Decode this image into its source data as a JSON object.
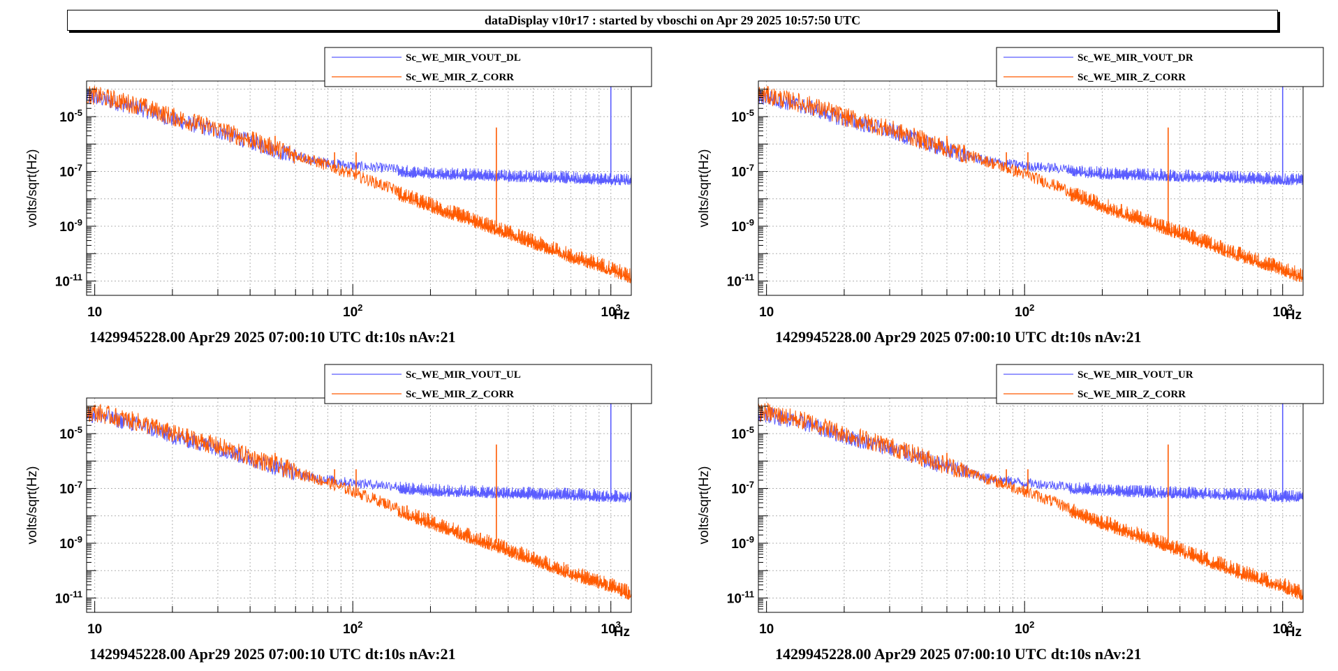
{
  "banner": "dataDisplay v10r17 : started by vboschi on Apr 29 2025 10:57:50 UTC",
  "colors": {
    "vout": "#5a5cff",
    "zcorr": "#ff5a00"
  },
  "chart_data": [
    {
      "type": "line",
      "ylabel": "volts/sqrt(Hz)",
      "xlabel_unit": "Hz",
      "footer": "1429945228.00 Apr29 2025 07:00:10 UTC dt:10s nAv:21",
      "xscale": "log",
      "yscale": "log",
      "xlim": [
        9.3,
        1200
      ],
      "ylim": [
        3e-12,
        0.0002
      ],
      "xticks": [
        "10",
        "10^2",
        "10^3"
      ],
      "yticks": [
        "10^-5",
        "10^-7",
        "10^-9",
        "10^-11"
      ],
      "grid": true,
      "legend_position": "top-right",
      "series": [
        {
          "name": "Sc_WE_MIR_VOUT_DL",
          "color": "#5a5cff",
          "x": [
            10,
            15,
            20,
            30,
            50,
            70,
            100,
            200,
            400,
            700,
            1000,
            1200
          ],
          "y": [
            5e-05,
            2e-05,
            8e-06,
            3e-06,
            6e-07,
            2.5e-07,
            1.6e-07,
            1e-07,
            8e-08,
            7e-08,
            6e-08,
            6e-08
          ],
          "peaks": [
            {
              "x": 1000,
              "y": 0.00015
            }
          ]
        },
        {
          "name": "Sc_WE_MIR_Z_CORR",
          "color": "#ff5a00",
          "x": [
            10,
            15,
            20,
            30,
            50,
            70,
            100,
            200,
            400,
            700,
            1000,
            1200
          ],
          "y": [
            6e-05,
            2.5e-05,
            1e-05,
            3.5e-06,
            7e-07,
            2.5e-07,
            8e-08,
            7e-09,
            7e-10,
            1e-10,
            3.5e-11,
            1.7e-11
          ],
          "peaks": [
            {
              "x": 50,
              "y": 2e-06
            },
            {
              "x": 85,
              "y": 5e-07
            },
            {
              "x": 103,
              "y": 5e-07
            },
            {
              "x": 360,
              "y": 4e-06
            }
          ]
        }
      ]
    },
    {
      "type": "line",
      "ylabel": "volts/sqrt(Hz)",
      "xlabel_unit": "Hz",
      "footer": "1429945228.00 Apr29 2025 07:00:10 UTC dt:10s nAv:21",
      "xscale": "log",
      "yscale": "log",
      "xlim": [
        9.3,
        1200
      ],
      "ylim": [
        3e-12,
        0.0002
      ],
      "xticks": [
        "10",
        "10^2",
        "10^3"
      ],
      "yticks": [
        "10^-5",
        "10^-7",
        "10^-9",
        "10^-11"
      ],
      "grid": true,
      "legend_position": "top-right",
      "series": [
        {
          "name": "Sc_WE_MIR_VOUT_DR",
          "color": "#5a5cff",
          "x": [
            10,
            15,
            20,
            30,
            50,
            70,
            100,
            200,
            400,
            700,
            1000,
            1200
          ],
          "y": [
            5e-05,
            2e-05,
            8e-06,
            3e-06,
            6e-07,
            2.5e-07,
            1.6e-07,
            1e-07,
            8e-08,
            7e-08,
            6e-08,
            6e-08
          ],
          "peaks": [
            {
              "x": 1000,
              "y": 0.00015
            }
          ]
        },
        {
          "name": "Sc_WE_MIR_Z_CORR",
          "color": "#ff5a00",
          "x": [
            10,
            15,
            20,
            30,
            50,
            70,
            100,
            200,
            400,
            700,
            1000,
            1200
          ],
          "y": [
            6e-05,
            2.5e-05,
            1e-05,
            3.5e-06,
            7e-07,
            2.5e-07,
            8e-08,
            7e-09,
            7e-10,
            1e-10,
            3.5e-11,
            1.7e-11
          ],
          "peaks": [
            {
              "x": 50,
              "y": 2e-06
            },
            {
              "x": 85,
              "y": 5e-07
            },
            {
              "x": 103,
              "y": 5e-07
            },
            {
              "x": 360,
              "y": 4e-06
            }
          ]
        }
      ]
    },
    {
      "type": "line",
      "ylabel": "volts/sqrt(Hz)",
      "xlabel_unit": "Hz",
      "footer": "1429945228.00 Apr29 2025 07:00:10 UTC dt:10s nAv:21",
      "xscale": "log",
      "yscale": "log",
      "xlim": [
        9.3,
        1200
      ],
      "ylim": [
        3e-12,
        0.0002
      ],
      "xticks": [
        "10",
        "10^2",
        "10^3"
      ],
      "yticks": [
        "10^-5",
        "10^-7",
        "10^-9",
        "10^-11"
      ],
      "grid": true,
      "legend_position": "top-right",
      "series": [
        {
          "name": "Sc_WE_MIR_VOUT_UL",
          "color": "#5a5cff",
          "x": [
            10,
            15,
            20,
            30,
            50,
            70,
            100,
            200,
            400,
            700,
            1000,
            1200
          ],
          "y": [
            5e-05,
            2e-05,
            8e-06,
            3e-06,
            6e-07,
            2.5e-07,
            1.6e-07,
            1e-07,
            8e-08,
            7e-08,
            6e-08,
            6e-08
          ],
          "peaks": [
            {
              "x": 1000,
              "y": 0.00015
            }
          ]
        },
        {
          "name": "Sc_WE_MIR_Z_CORR",
          "color": "#ff5a00",
          "x": [
            10,
            15,
            20,
            30,
            50,
            70,
            100,
            200,
            400,
            700,
            1000,
            1200
          ],
          "y": [
            6e-05,
            2.5e-05,
            1e-05,
            3.5e-06,
            7e-07,
            2.5e-07,
            8e-08,
            7e-09,
            7e-10,
            1e-10,
            3.5e-11,
            1.7e-11
          ],
          "peaks": [
            {
              "x": 50,
              "y": 2e-06
            },
            {
              "x": 85,
              "y": 5e-07
            },
            {
              "x": 103,
              "y": 5e-07
            },
            {
              "x": 360,
              "y": 4e-06
            }
          ]
        }
      ]
    },
    {
      "type": "line",
      "ylabel": "volts/sqrt(Hz)",
      "xlabel_unit": "Hz",
      "footer": "1429945228.00 Apr29 2025 07:00:10 UTC dt:10s nAv:21",
      "xscale": "log",
      "yscale": "log",
      "xlim": [
        9.3,
        1200
      ],
      "ylim": [
        3e-12,
        0.0002
      ],
      "xticks": [
        "10",
        "10^2",
        "10^3"
      ],
      "yticks": [
        "10^-5",
        "10^-7",
        "10^-9",
        "10^-11"
      ],
      "grid": true,
      "legend_position": "top-right",
      "series": [
        {
          "name": "Sc_WE_MIR_VOUT_UR",
          "color": "#5a5cff",
          "x": [
            10,
            15,
            20,
            30,
            50,
            70,
            100,
            200,
            400,
            700,
            1000,
            1200
          ],
          "y": [
            5e-05,
            2e-05,
            8e-06,
            3e-06,
            6e-07,
            2.5e-07,
            1.6e-07,
            1e-07,
            8e-08,
            7e-08,
            6e-08,
            6e-08
          ],
          "peaks": [
            {
              "x": 1000,
              "y": 0.00015
            }
          ]
        },
        {
          "name": "Sc_WE_MIR_Z_CORR",
          "color": "#ff5a00",
          "x": [
            10,
            15,
            20,
            30,
            50,
            70,
            100,
            200,
            400,
            700,
            1000,
            1200
          ],
          "y": [
            6e-05,
            2.5e-05,
            1e-05,
            3.5e-06,
            7e-07,
            2.5e-07,
            8e-08,
            7e-09,
            7e-10,
            1e-10,
            3.5e-11,
            1.7e-11
          ],
          "peaks": [
            {
              "x": 50,
              "y": 2e-06
            },
            {
              "x": 85,
              "y": 5e-07
            },
            {
              "x": 103,
              "y": 5e-07
            },
            {
              "x": 360,
              "y": 4e-06
            }
          ]
        }
      ]
    }
  ]
}
